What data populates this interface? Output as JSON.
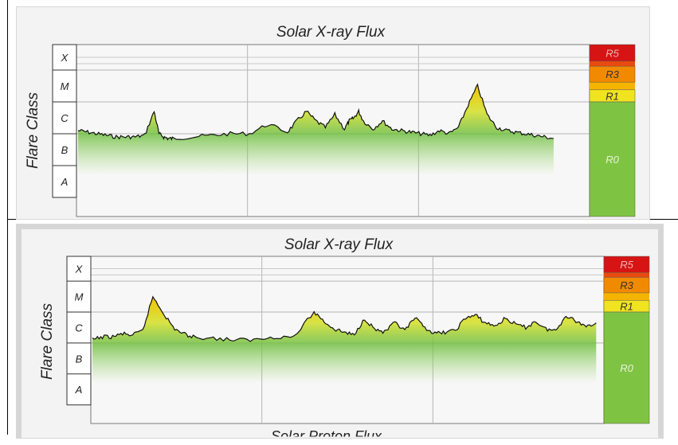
{
  "charts": [
    {
      "title": "Solar X-ray Flux",
      "ylabel": "Flare Class",
      "flare_classes": [
        "X",
        "M",
        "C",
        "B",
        "A"
      ],
      "r_scale": [
        {
          "label": "R5",
          "color": "#d61414"
        },
        {
          "label": "R3",
          "color": "#f28a00"
        },
        {
          "label": "R1",
          "color": "#f0e31f"
        },
        {
          "label": "R0",
          "color": "#7fc343"
        }
      ]
    },
    {
      "title": "Solar X-ray Flux",
      "ylabel": "Flare Class",
      "flare_classes": [
        "X",
        "M",
        "C",
        "B",
        "A"
      ],
      "r_scale": [
        {
          "label": "R5",
          "color": "#d61414"
        },
        {
          "label": "R3",
          "color": "#f28a00"
        },
        {
          "label": "R1",
          "color": "#f0e31f"
        },
        {
          "label": "R0",
          "color": "#7fc343"
        }
      ]
    }
  ],
  "bottom_cut_title": "Solar Proton Flux",
  "chart_data": [
    {
      "type": "area",
      "title": "Solar X-ray Flux",
      "ylabel": "Flare Class",
      "y_scale": "log",
      "y_ticks": [
        "A",
        "B",
        "C",
        "M",
        "X"
      ],
      "x_range": [
        0,
        100
      ],
      "ylim": [
        -8.6,
        -3.2
      ],
      "series": [
        {
          "values_x": [
            0,
            2,
            4,
            6,
            8,
            10,
            12,
            14,
            16,
            17,
            18,
            19,
            20,
            24,
            28,
            32,
            36,
            40,
            44,
            46,
            48,
            50,
            52,
            54,
            56,
            57,
            58,
            59,
            60,
            62,
            64,
            66,
            68,
            70,
            72,
            74,
            76,
            78,
            80,
            82,
            84,
            86,
            88,
            90,
            92,
            94,
            96,
            98,
            100
          ],
          "values_log": [
            -5.9,
            -5.95,
            -6.0,
            -6.05,
            -6.1,
            -6.1,
            -6.1,
            -6.05,
            -5.3,
            -6.0,
            -6.1,
            -6.15,
            -6.15,
            -6.1,
            -6.05,
            -6.0,
            -6.0,
            -5.7,
            -5.95,
            -5.6,
            -5.3,
            -5.6,
            -5.8,
            -5.4,
            -5.85,
            -5.6,
            -5.5,
            -5.3,
            -5.6,
            -5.85,
            -5.6,
            -5.85,
            -5.9,
            -5.95,
            -6.0,
            -6.05,
            -5.9,
            -6.0,
            -5.8,
            -5.1,
            -4.5,
            -5.4,
            -5.8,
            -5.9,
            -5.95,
            -6.0,
            -6.05,
            -6.1,
            -6.15
          ]
        }
      ]
    },
    {
      "type": "area",
      "title": "Solar X-ray Flux",
      "ylabel": "Flare Class",
      "y_scale": "log",
      "y_ticks": [
        "A",
        "B",
        "C",
        "M",
        "X"
      ],
      "x_range": [
        0,
        100
      ],
      "ylim": [
        -8.6,
        -3.2
      ],
      "series": [
        {
          "values_x": [
            0,
            2,
            4,
            6,
            8,
            10,
            12,
            14,
            16,
            18,
            20,
            24,
            28,
            32,
            36,
            40,
            44,
            46,
            48,
            50,
            52,
            54,
            56,
            58,
            60,
            62,
            64,
            66,
            68,
            70,
            72,
            74,
            76,
            78,
            80,
            82,
            84,
            86,
            88,
            90,
            92,
            94,
            96,
            98,
            100
          ],
          "values_log": [
            -5.9,
            -5.8,
            -5.8,
            -5.7,
            -5.75,
            -5.6,
            -4.5,
            -5.0,
            -5.5,
            -5.7,
            -5.8,
            -5.85,
            -5.9,
            -5.9,
            -5.8,
            -5.8,
            -5.0,
            -5.3,
            -5.55,
            -5.65,
            -5.75,
            -5.2,
            -5.55,
            -5.65,
            -5.35,
            -5.6,
            -5.2,
            -5.5,
            -5.7,
            -5.65,
            -5.6,
            -5.2,
            -5.1,
            -5.35,
            -5.45,
            -5.2,
            -5.4,
            -5.5,
            -5.3,
            -5.55,
            -5.6,
            -5.1,
            -5.3,
            -5.45,
            -5.35
          ]
        }
      ]
    }
  ]
}
